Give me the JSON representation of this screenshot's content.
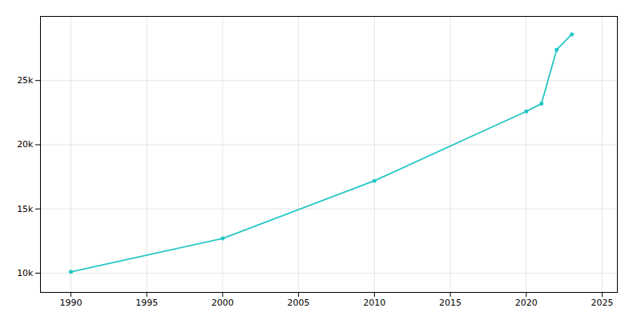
{
  "chart_data": {
    "type": "line",
    "x": [
      1990,
      2000,
      2010,
      2020,
      2021,
      2022,
      2023
    ],
    "values": [
      10100,
      12700,
      17200,
      22600,
      23200,
      27400,
      28600
    ],
    "color": "#26C6C6",
    "marker": "circle",
    "xlim": [
      1988,
      2026
    ],
    "ylim": [
      8500,
      30000
    ],
    "xticks": [
      1990,
      1995,
      2000,
      2005,
      2010,
      2015,
      2020,
      2025
    ],
    "yticks": [
      {
        "value": 10000,
        "label": "10k"
      },
      {
        "value": 15000,
        "label": "15k"
      },
      {
        "value": 20000,
        "label": "20k"
      },
      {
        "value": 25000,
        "label": "25k"
      }
    ],
    "grid": true
  }
}
